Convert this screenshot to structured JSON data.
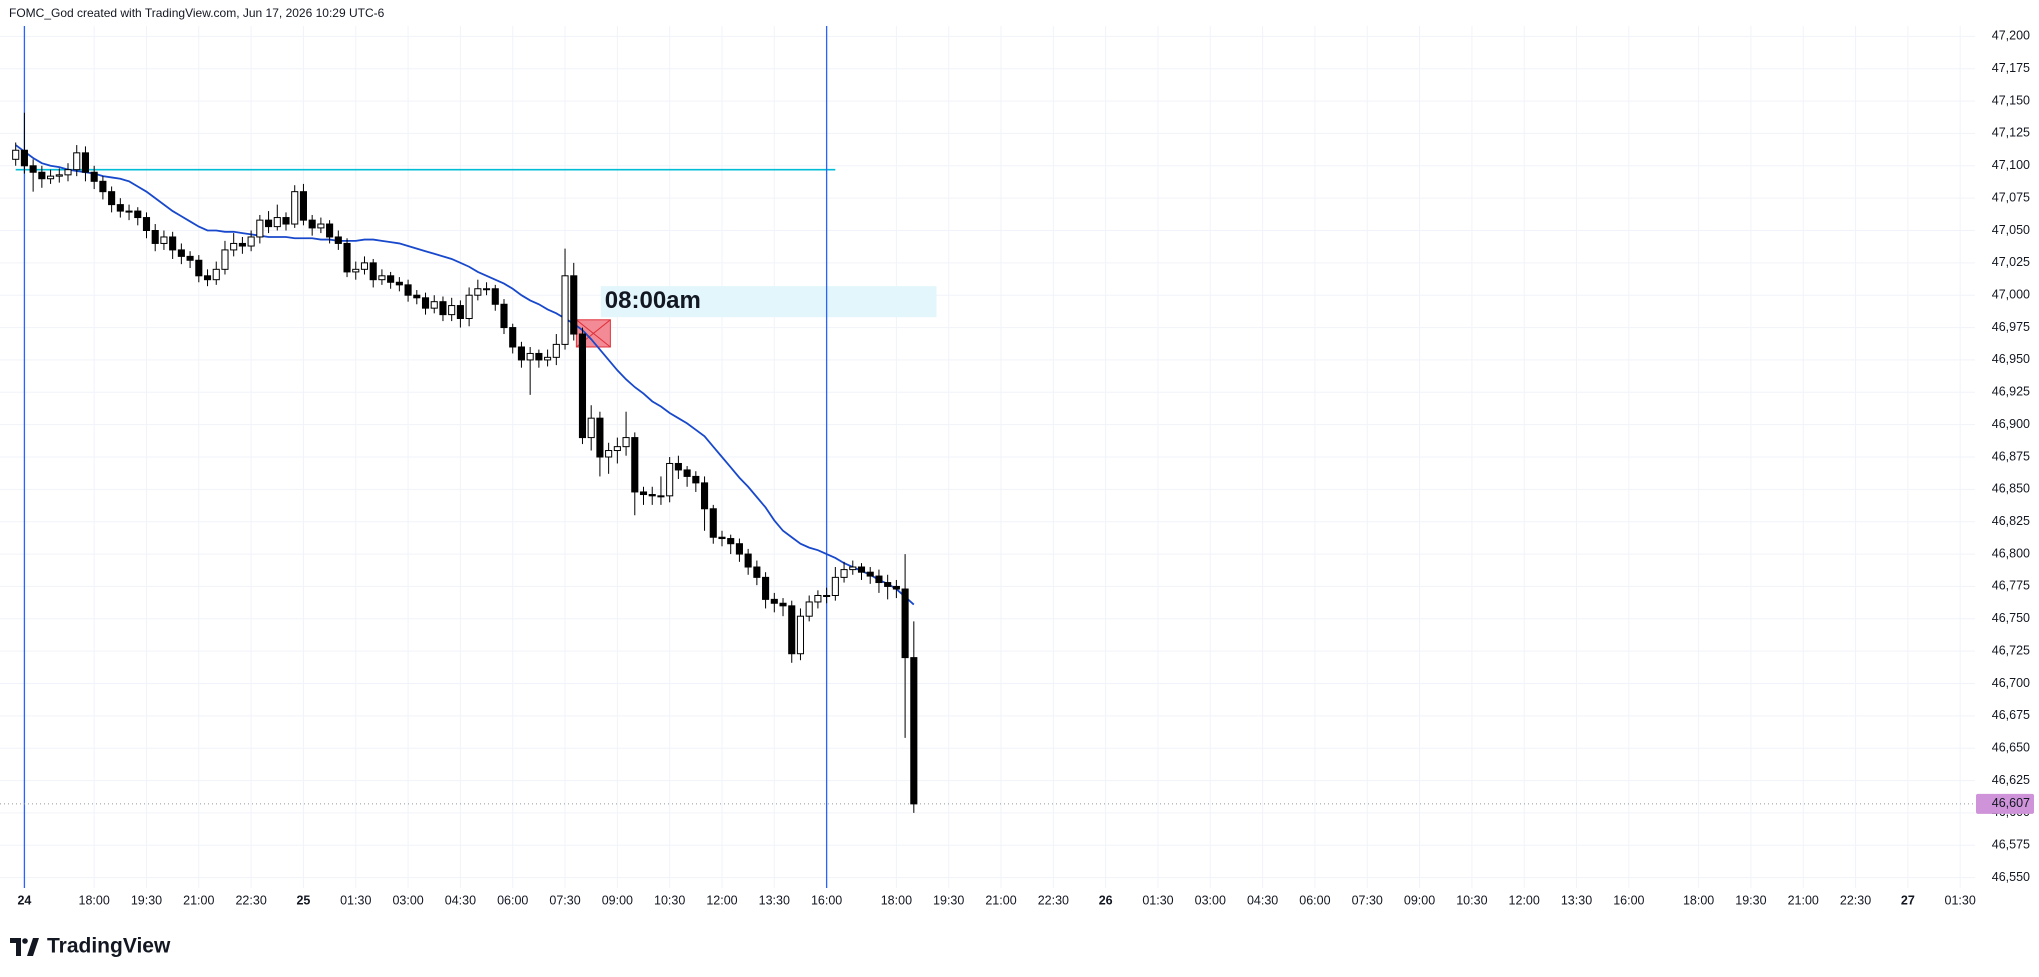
{
  "header": {
    "title": "FOMC_God created with TradingView.com, Jun 17, 2026 10:29 UTC-6"
  },
  "footer": {
    "brand": "TradingView"
  },
  "chart_data": {
    "type": "candlestick",
    "open": [
      47105,
      47112,
      47100,
      47095,
      47090,
      47092,
      47093,
      47097,
      47110,
      47095,
      47088,
      47080,
      47070,
      47065,
      47065,
      47060,
      47050,
      47040,
      47045,
      47035,
      47030,
      47027,
      47015,
      47012,
      47020,
      47035,
      47040,
      47038,
      47045,
      47058,
      47053,
      47060,
      47055,
      47080,
      47058,
      47052,
      47055,
      47045,
      47040,
      47018,
      47020,
      47025,
      47012,
      47015,
      47010,
      47008,
      47000,
      46998,
      46990,
      46995,
      46985,
      46992,
      46982,
      47000,
      47005,
      47005,
      46993,
      46975,
      46960,
      46950,
      46955,
      46950,
      46952,
      46962,
      47015,
      46970,
      46890,
      46905,
      46875,
      46880,
      46883,
      46890,
      46848,
      46846,
      46845,
      46845,
      46870,
      46865,
      46860,
      46855,
      46835,
      46813,
      46812,
      46808,
      46800,
      46790,
      46782,
      46765,
      46762,
      46760,
      46723,
      46752,
      46763,
      46768,
      46768,
      46782,
      46788,
      46790,
      46786,
      46783,
      46778,
      46775,
      46773,
      46720
    ],
    "high": [
      47118,
      47141,
      47105,
      47100,
      47097,
      47098,
      47102,
      47116,
      47115,
      47100,
      47092,
      47084,
      47075,
      47070,
      47068,
      47064,
      47055,
      47050,
      47049,
      47040,
      47034,
      47031,
      47020,
      47026,
      47042,
      47048,
      47045,
      47050,
      47062,
      47065,
      47070,
      47064,
      47085,
      47086,
      47062,
      47060,
      47058,
      47050,
      47044,
      47026,
      47030,
      47028,
      47020,
      47018,
      47014,
      47012,
      47004,
      47002,
      47000,
      46999,
      46998,
      46996,
      47006,
      47012,
      47010,
      47008,
      46997,
      46978,
      46964,
      46960,
      46958,
      46958,
      46970,
      47036,
      47025,
      46975,
      46915,
      46910,
      46886,
      46890,
      46910,
      46894,
      46852,
      46852,
      46860,
      46875,
      46876,
      46868,
      46864,
      46860,
      46838,
      46818,
      46815,
      46812,
      46804,
      46795,
      46786,
      46770,
      46766,
      46764,
      46758,
      46768,
      46772,
      46774,
      46790,
      46794,
      46795,
      46793,
      46790,
      46788,
      46784,
      46780,
      46800,
      46748
    ],
    "low": [
      47100,
      47094,
      47080,
      47083,
      47086,
      47087,
      47088,
      47092,
      47088,
      47082,
      47074,
      47064,
      47060,
      47058,
      47054,
      47044,
      47034,
      47035,
      47028,
      47024,
      47021,
      47010,
      47007,
      47008,
      47016,
      47030,
      47032,
      47034,
      47040,
      47048,
      47050,
      47050,
      47052,
      47054,
      47046,
      47048,
      47040,
      47035,
      47014,
      47012,
      47016,
      47006,
      47008,
      47005,
      47003,
      46995,
      46993,
      46985,
      46986,
      46980,
      46980,
      46975,
      46976,
      46996,
      47000,
      46988,
      46970,
      46955,
      46944,
      46923,
      46944,
      46945,
      46946,
      46958,
      46965,
      46885,
      46880,
      46860,
      46862,
      46870,
      46876,
      46830,
      46838,
      46838,
      46838,
      46840,
      46858,
      46852,
      46848,
      46818,
      46808,
      46806,
      46800,
      46794,
      46784,
      46776,
      46758,
      46755,
      46752,
      46716,
      46718,
      46748,
      46758,
      46762,
      46764,
      46778,
      46784,
      46780,
      46777,
      46770,
      46765,
      46766,
      46658,
      46600
    ],
    "close": [
      47112,
      47100,
      47095,
      47090,
      47092,
      47093,
      47097,
      47110,
      47095,
      47088,
      47080,
      47070,
      47065,
      47065,
      47060,
      47050,
      47040,
      47045,
      47035,
      47030,
      47027,
      47015,
      47012,
      47020,
      47035,
      47040,
      47038,
      47045,
      47058,
      47053,
      47060,
      47055,
      47080,
      47058,
      47052,
      47055,
      47045,
      47040,
      47018,
      47020,
      47025,
      47012,
      47015,
      47010,
      47008,
      47000,
      46998,
      46990,
      46995,
      46985,
      46992,
      46982,
      47000,
      47005,
      47005,
      46993,
      46975,
      46960,
      46950,
      46955,
      46950,
      46952,
      46962,
      47015,
      46970,
      46890,
      46905,
      46875,
      46880,
      46883,
      46890,
      46848,
      46846,
      46845,
      46845,
      46870,
      46865,
      46860,
      46855,
      46835,
      46813,
      46812,
      46808,
      46800,
      46790,
      46782,
      46765,
      46762,
      46760,
      46723,
      46752,
      46763,
      46768,
      46768,
      46782,
      46788,
      46790,
      46786,
      46783,
      46778,
      46775,
      46773,
      46720,
      46607
    ],
    "up_color": "#ffffff",
    "down_color": "#000000",
    "border_color": "#000000",
    "overlays": [
      {
        "type": "line",
        "color": "#1848cc",
        "values": [
          47116,
          47111,
          47106,
          47102,
          47100,
          47099,
          47097,
          47096,
          47095,
          47094,
          47092,
          47091,
          47090,
          47088,
          47084,
          47080,
          47075,
          47070,
          47065,
          47061,
          47057,
          47053,
          47050,
          47050,
          47049,
          47049,
          47048,
          47047,
          47046,
          47045,
          47045,
          47045,
          47044,
          47044,
          47044,
          47043,
          47043,
          47042,
          47042,
          47042,
          47043,
          47043,
          47042,
          47041,
          47040,
          47038,
          47036,
          47034,
          47032,
          47030,
          47028,
          47025,
          47022,
          47018,
          47015,
          47012,
          47009,
          47005,
          47000,
          46996,
          46993,
          46989,
          46986,
          46982,
          46978,
          46973,
          46966,
          46958,
          46950,
          46942,
          46935,
          46929,
          46924,
          46918,
          46914,
          46909,
          46905,
          46901,
          46896,
          46891,
          46883,
          46875,
          46867,
          46859,
          46852,
          46844,
          46836,
          46826,
          46818,
          46813,
          46808,
          46805,
          46803,
          46800,
          46797,
          46793,
          46790,
          46787,
          46784,
          46780,
          46777,
          46773,
          46767,
          46761
        ]
      }
    ],
    "xlim": [
      -1.8,
      224.7
    ],
    "xticks": [
      {
        "value": 1,
        "label": "24"
      },
      {
        "value": 9,
        "label": "18:00"
      },
      {
        "value": 15,
        "label": "19:30"
      },
      {
        "value": 21,
        "label": "21:00"
      },
      {
        "value": 27,
        "label": "22:30"
      },
      {
        "value": 33,
        "label": "25"
      },
      {
        "value": 39,
        "label": "01:30"
      },
      {
        "value": 45,
        "label": "03:00"
      },
      {
        "value": 51,
        "label": "04:30"
      },
      {
        "value": 57,
        "label": "06:00"
      },
      {
        "value": 63,
        "label": "07:30"
      },
      {
        "value": 69,
        "label": "09:00"
      },
      {
        "value": 75,
        "label": "10:30"
      },
      {
        "value": 81,
        "label": "12:00"
      },
      {
        "value": 87,
        "label": "13:30"
      },
      {
        "value": 93,
        "label": "16:00"
      },
      {
        "value": 101,
        "label": "18:00"
      },
      {
        "value": 107,
        "label": "19:30"
      },
      {
        "value": 113,
        "label": "21:00"
      },
      {
        "value": 119,
        "label": "22:30"
      },
      {
        "value": 125,
        "label": "26"
      },
      {
        "value": 131,
        "label": "01:30"
      },
      {
        "value": 137,
        "label": "03:00"
      },
      {
        "value": 143,
        "label": "04:30"
      },
      {
        "value": 149,
        "label": "06:00"
      },
      {
        "value": 155,
        "label": "07:30"
      },
      {
        "value": 161,
        "label": "09:00"
      },
      {
        "value": 167,
        "label": "10:30"
      },
      {
        "value": 173,
        "label": "12:00"
      },
      {
        "value": 179,
        "label": "13:30"
      },
      {
        "value": 185,
        "label": "16:00"
      },
      {
        "value": 193,
        "label": "18:00"
      },
      {
        "value": 199,
        "label": "19:30"
      },
      {
        "value": 205,
        "label": "21:00"
      },
      {
        "value": 211,
        "label": "22:30"
      },
      {
        "value": 217,
        "label": "27"
      },
      {
        "value": 223,
        "label": "01:30"
      }
    ],
    "ylim": [
      46542,
      47208
    ],
    "yticks": [
      {
        "value": 46550,
        "label": "46,550"
      },
      {
        "value": 46575,
        "label": "46,575"
      },
      {
        "value": 46600,
        "label": "46,600"
      },
      {
        "value": 46625,
        "label": "46,625"
      },
      {
        "value": 46650,
        "label": "46,650"
      },
      {
        "value": 46675,
        "label": "46,675"
      },
      {
        "value": 46700,
        "label": "46,700"
      },
      {
        "value": 46725,
        "label": "46,725"
      },
      {
        "value": 46750,
        "label": "46,750"
      },
      {
        "value": 46775,
        "label": "46,775"
      },
      {
        "value": 46800,
        "label": "46,800"
      },
      {
        "value": 46825,
        "label": "46,825"
      },
      {
        "value": 46850,
        "label": "46,850"
      },
      {
        "value": 46875,
        "label": "46,875"
      },
      {
        "value": 46900,
        "label": "46,900"
      },
      {
        "value": 46925,
        "label": "46,925"
      },
      {
        "value": 46950,
        "label": "46,950"
      },
      {
        "value": 46975,
        "label": "46,975"
      },
      {
        "value": 47000,
        "label": "47,000"
      },
      {
        "value": 47025,
        "label": "47,025"
      },
      {
        "value": 47050,
        "label": "47,050"
      },
      {
        "value": 47075,
        "label": "47,075"
      },
      {
        "value": 47100,
        "label": "47,100"
      },
      {
        "value": 47125,
        "label": "47,125"
      },
      {
        "value": 47150,
        "label": "47,150"
      },
      {
        "value": 47175,
        "label": "47,175"
      },
      {
        "value": 47200,
        "label": "47,200"
      }
    ],
    "grid": true,
    "hlines": [
      {
        "value": 47097,
        "color": "#00bcd4",
        "from": 0,
        "to": 94
      }
    ],
    "vlines": [
      {
        "value": 1,
        "color": "#2962ff"
      },
      {
        "value": 93,
        "color": "#2962ff"
      }
    ],
    "boxes": [
      {
        "x": [
          64.3,
          68.2
        ],
        "y": [
          46960,
          46981
        ],
        "color": "#f28b96",
        "border": "#e0303a",
        "cross": true
      },
      {
        "x": [
          67.1,
          105.6
        ],
        "y": [
          46983,
          47007
        ],
        "color": "#e3f6fb",
        "label": "08:00am"
      }
    ],
    "last_price": {
      "value": 46607,
      "label": "46,607",
      "color": "#ce93d8"
    }
  }
}
